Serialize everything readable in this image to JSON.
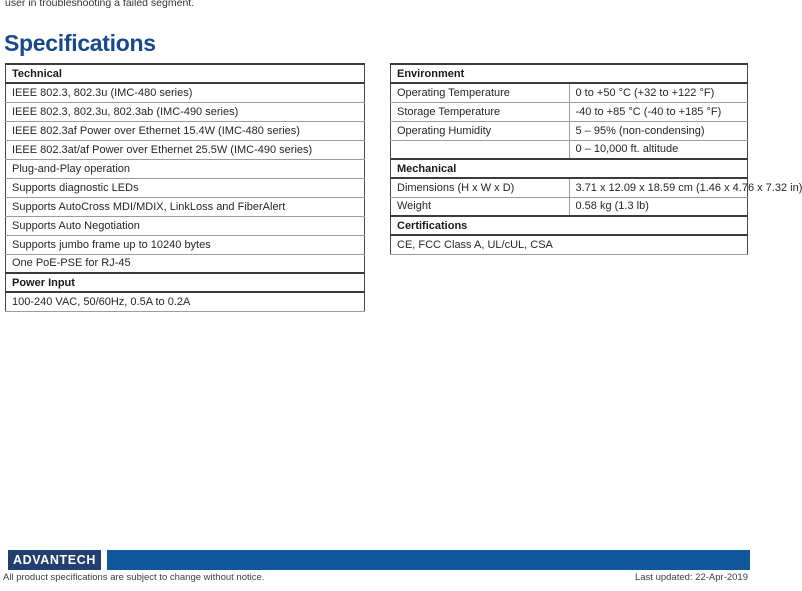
{
  "page": {
    "top_fragment": "user in troubleshooting a failed segment.",
    "heading": "Specifications"
  },
  "colors": {
    "heading_blue": "#17498b",
    "logo_navy": "#21406f",
    "bar_blue": "#0f579b"
  },
  "left_table": {
    "rows": [
      {
        "type": "header",
        "text": "Technical"
      },
      {
        "type": "row",
        "text": "IEEE 802.3, 802.3u (IMC-480 series)"
      },
      {
        "type": "row",
        "text": "IEEE 802.3, 802.3u, 802.3ab (IMC-490 series)"
      },
      {
        "type": "row",
        "text": "IEEE 802.3af Power over Ethernet 15.4W (IMC-480 series)"
      },
      {
        "type": "row",
        "text": "IEEE 802.3at/af Power over Ethernet 25.5W (IMC-490 series)"
      },
      {
        "type": "row",
        "text": "Plug-and-Play operation"
      },
      {
        "type": "row",
        "text": "Supports diagnostic LEDs"
      },
      {
        "type": "row",
        "text": "Supports AutoCross MDI/MDIX, LinkLoss and FiberAlert"
      },
      {
        "type": "row",
        "text": "Supports Auto Negotiation"
      },
      {
        "type": "row",
        "text": "Supports jumbo frame up to 10240 bytes"
      },
      {
        "type": "row",
        "text": "One PoE-PSE for RJ-45"
      },
      {
        "type": "header",
        "text": "Power Input"
      },
      {
        "type": "row",
        "text": "100-240 VAC, 50/60Hz, 0.5A to 0.2A"
      }
    ]
  },
  "right_table": {
    "rows": [
      {
        "type": "header",
        "label": "Environment",
        "value": ""
      },
      {
        "type": "pair",
        "label": "Operating Temperature",
        "value": "0 to +50 °C (+32 to +122 °F)"
      },
      {
        "type": "pair",
        "label": "Storage Temperature",
        "value": "-40 to +85 °C (-40 to +185 °F)"
      },
      {
        "type": "pair",
        "label": "Operating Humidity",
        "value": "5 – 95% (non-condensing)"
      },
      {
        "type": "pair",
        "label": "",
        "value": "0 – 10,000 ft. altitude"
      },
      {
        "type": "header",
        "label": "Mechanical",
        "value": ""
      },
      {
        "type": "pair",
        "label": "Dimensions (H x W x D)",
        "value": "3.71 x 12.09 x 18.59 cm (1.46 x 4.76 x 7.32 in)"
      },
      {
        "type": "pair",
        "label": "Weight",
        "value": "0.58 kg (1.3 lb)"
      },
      {
        "type": "header",
        "label": "Certifications",
        "value": ""
      },
      {
        "type": "full",
        "label": "",
        "value": "CE, FCC Class A, UL/cUL, CSA"
      }
    ]
  },
  "footer": {
    "logo_text": "ADVANTECH",
    "disclaimer": "All product specifications are subject to change without notice.",
    "last_updated": "Last updated: 22-Apr-2019"
  }
}
